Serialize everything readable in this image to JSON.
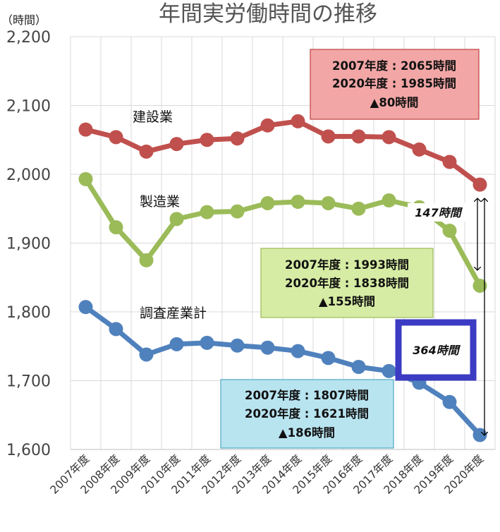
{
  "chart_data": {
    "type": "line",
    "title": "年間実労働時間の推移",
    "unit_label": "（時間）",
    "categories": [
      "2007年度",
      "2008年度",
      "2009年度",
      "2010年度",
      "2011年度",
      "2012年度",
      "2013年度",
      "2014年度",
      "2015年度",
      "2016年度",
      "2017年度",
      "2018年度",
      "2019年度",
      "2020年度"
    ],
    "ylim": [
      1600,
      2200
    ],
    "yticks": [
      "1,600",
      "1,700",
      "1,800",
      "1,900",
      "2,000",
      "2,100",
      "2,200"
    ],
    "grid": true,
    "series": [
      {
        "name": "建設業",
        "color": "#c0504d",
        "values": [
          2065,
          2054,
          2033,
          2044,
          2050,
          2052,
          2071,
          2077,
          2055,
          2055,
          2054,
          2036,
          2018,
          1985
        ]
      },
      {
        "name": "製造業",
        "color": "#9bbb59",
        "values": [
          1993,
          1923,
          1875,
          1935,
          1945,
          1946,
          1958,
          1960,
          1958,
          1950,
          1962,
          1952,
          1918,
          1838
        ]
      },
      {
        "name": "調査産業計",
        "color": "#4f81bd",
        "values": [
          1807,
          1775,
          1738,
          1753,
          1755,
          1751,
          1748,
          1743,
          1733,
          1720,
          1714,
          1697,
          1669,
          1621
        ]
      }
    ],
    "annotations": {
      "construction_box": [
        "2007年度 : 2065時間",
        "2020年度 : 1985時間",
        "▲80時間"
      ],
      "manufacturing_box": [
        "2007年度 : 1993時間",
        "2020年度 : 1838時間",
        "▲155時間"
      ],
      "all_box": [
        "2007年度 : 1807時間",
        "2020年度 : 1621時間",
        "▲186時間"
      ],
      "diff_manufacturing": "147時間",
      "diff_all": "364時間"
    }
  }
}
